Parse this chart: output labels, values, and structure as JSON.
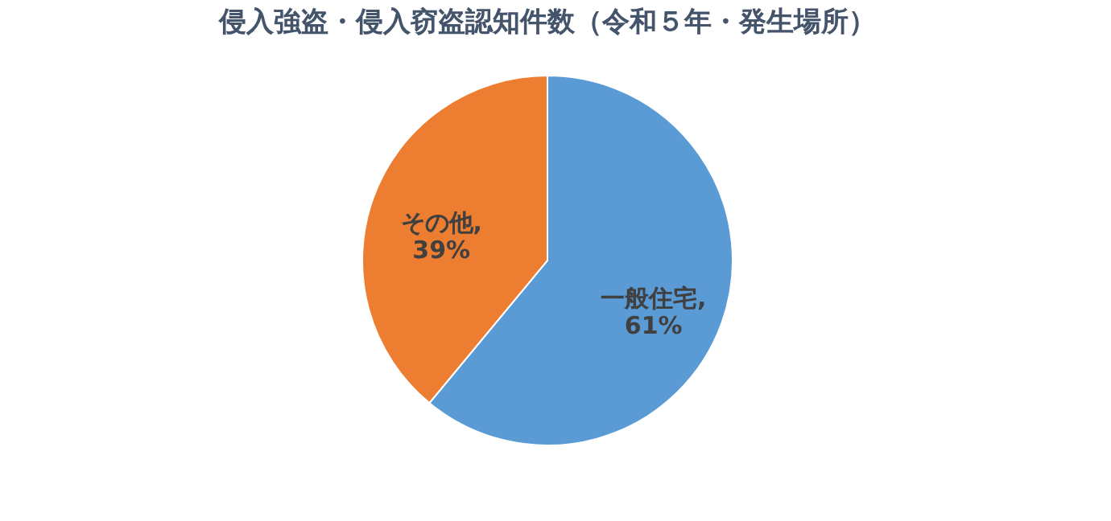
{
  "chart_data": {
    "type": "pie",
    "title": "侵入強盗・侵入窃盗認知件数（令和５年・発生場所）",
    "categories": [
      "一般住宅",
      "その他"
    ],
    "values": [
      61,
      39
    ],
    "colors": [
      "#5b9bd5",
      "#ed7d31"
    ],
    "value_labels": [
      ",\n61%",
      ",\n39%"
    ],
    "legend": false
  }
}
